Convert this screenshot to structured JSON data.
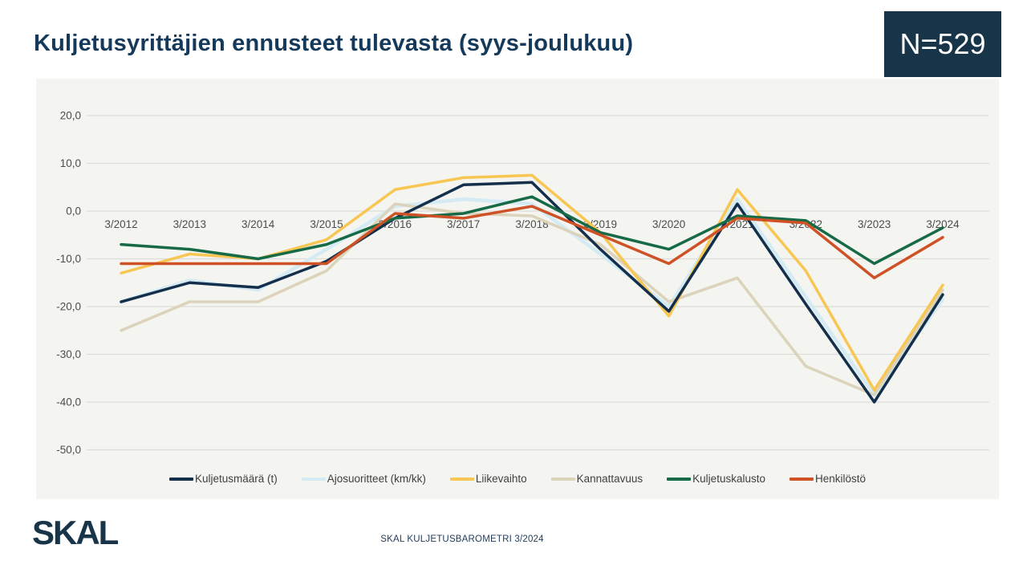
{
  "header": {
    "title": "Kuljetusyrittäjien ennusteet tulevasta (syys-joulukuu)",
    "sample_badge": "N=529"
  },
  "footer": {
    "logo_text": "SKAL",
    "caption": "SKAL KULJETUSBAROMETRI 3/2024"
  },
  "colors": {
    "title_navy": "#15395a",
    "badge_background": "#173449",
    "panel_background": "#f4f4f1",
    "gridline": "#dcdcda",
    "axis_label": "#4d4d4d"
  },
  "chart_data": {
    "type": "line",
    "title": "Kuljetusyrittäjien ennusteet tulevasta (syys-joulukuu)",
    "xlabel": "",
    "ylabel": "",
    "x_labels": [
      "3/2012",
      "3/2013",
      "3/2014",
      "3/2015",
      "3/2016",
      "3/2017",
      "3/2018",
      "3/2019",
      "3/2020",
      "3/2021",
      "3/2022",
      "3/2023",
      "3/2024"
    ],
    "y_ticks": [
      "20,0",
      "10,0",
      "0,0",
      "-10,0",
      "-20,0",
      "-30,0",
      "-40,0",
      "-50,0"
    ],
    "y_tick_values": [
      20,
      10,
      0,
      -10,
      -20,
      -30,
      -40,
      -50
    ],
    "ylim": [
      -55,
      25
    ],
    "grid": true,
    "legend_position": "bottom",
    "series": [
      {
        "name": "Kuljetusmäärä (t)",
        "color": "#142f4c",
        "width": 3.5,
        "values": [
          -19,
          -15,
          -16,
          -10.5,
          -1.5,
          5.5,
          6,
          -8,
          -21,
          1.5,
          -19.5,
          -40,
          -17.5
        ]
      },
      {
        "name": "Ajosuoritteet (km/kk)",
        "color": "#d5ebf4",
        "width": 4.5,
        "values": [
          -19,
          -14.5,
          -16.5,
          -8,
          1,
          2.5,
          1.5,
          -9,
          -20,
          2.5,
          -18,
          -38.5,
          -18.5
        ]
      },
      {
        "name": "Liikevaihto",
        "color": "#f8c653",
        "width": 3.5,
        "values": [
          -13,
          -9,
          -10,
          -6,
          4.5,
          7,
          7.5,
          -4.5,
          -22,
          4.5,
          -12.5,
          -37.5,
          -15.5
        ]
      },
      {
        "name": "Kannattavuus",
        "color": "#dbd3ba",
        "width": 3.5,
        "values": [
          -25,
          -19,
          -19,
          -12.5,
          1.5,
          -0.5,
          -1,
          -7,
          -19,
          -14,
          -32.5,
          -38.5,
          -16.5
        ]
      },
      {
        "name": "Kuljetuskalusto",
        "color": "#166a45",
        "width": 3.5,
        "values": [
          -7,
          -8,
          -10,
          -7,
          -1.5,
          -0.5,
          3,
          -4.5,
          -8,
          -1,
          -2,
          -11,
          -3.5
        ]
      },
      {
        "name": "Henkilöstö",
        "color": "#cf5226",
        "width": 3.5,
        "values": [
          -11,
          -11,
          -11,
          -11,
          -0.5,
          -1.5,
          1,
          -5,
          -11,
          -1.5,
          -2.5,
          -14,
          -5.5
        ]
      }
    ],
    "draw_order": [
      1,
      3,
      2,
      0,
      4,
      5
    ]
  }
}
